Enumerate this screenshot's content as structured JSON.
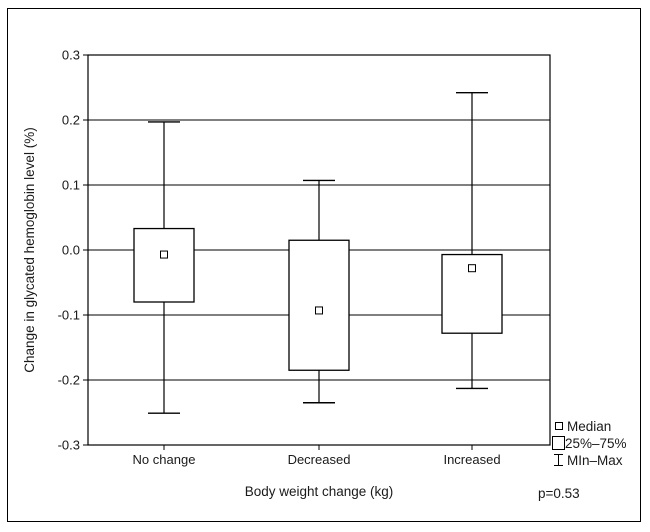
{
  "chart_data": {
    "type": "box",
    "xlabel": "Body weight change (kg)",
    "ylabel": "Change in glycated hemoglobin level (%)",
    "ylim": [
      -0.3,
      0.3
    ],
    "yticks": [
      "0.3",
      "0.2",
      "0.1",
      "0.0",
      "-0.1",
      "-0.2",
      "-0.3"
    ],
    "grid": true,
    "categories": [
      "No change",
      "Decreased",
      "Increased"
    ],
    "boxes": [
      {
        "category": "No change",
        "min": -0.251,
        "q1": -0.08,
        "median": -0.007,
        "q3": 0.033,
        "max": 0.197
      },
      {
        "category": "Decreased",
        "min": -0.235,
        "q1": -0.185,
        "median": -0.093,
        "q3": 0.015,
        "max": 0.107
      },
      {
        "category": "Increased",
        "min": -0.213,
        "q1": -0.128,
        "median": -0.028,
        "q3": -0.007,
        "max": 0.242
      }
    ],
    "legend": {
      "position": "bottom-right",
      "items": [
        "Median",
        "25%–75%",
        "MIn–Max"
      ]
    },
    "annotation": "p=0.53"
  }
}
